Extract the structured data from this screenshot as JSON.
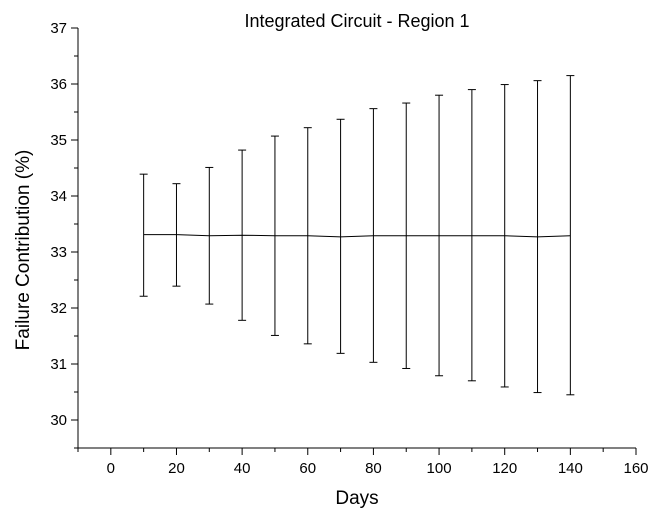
{
  "chart_data": {
    "type": "line",
    "title": "Integrated Circuit - Region 1",
    "xlabel": "Days",
    "ylabel": "Failure Contribution (%)",
    "xlim": [
      -10,
      160
    ],
    "ylim": [
      29.5,
      37
    ],
    "x_ticks": [
      0,
      20,
      40,
      60,
      80,
      100,
      120,
      140,
      160
    ],
    "y_ticks": [
      30,
      31,
      32,
      33,
      34,
      35,
      36,
      37
    ],
    "grid": false,
    "legend": "none",
    "series": [
      {
        "x": [
          10,
          20,
          30,
          40,
          50,
          60,
          70,
          80,
          90,
          100,
          110,
          120,
          130,
          140
        ],
        "y": [
          33.31,
          33.31,
          33.29,
          33.3,
          33.29,
          33.29,
          33.27,
          33.29,
          33.29,
          33.29,
          33.29,
          33.29,
          33.27,
          33.29
        ],
        "y_low": [
          32.21,
          32.39,
          32.07,
          31.78,
          31.51,
          31.36,
          31.19,
          31.03,
          30.92,
          30.79,
          30.7,
          30.59,
          30.49,
          30.45
        ],
        "y_high": [
          34.39,
          34.22,
          34.51,
          34.82,
          35.07,
          35.22,
          35.37,
          35.56,
          35.66,
          35.8,
          35.9,
          35.99,
          36.06,
          36.15
        ]
      }
    ],
    "line_color": "#000000"
  }
}
